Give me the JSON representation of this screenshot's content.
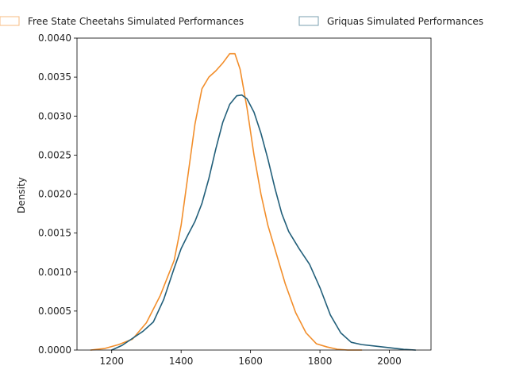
{
  "chart_data": {
    "type": "line",
    "title": "",
    "xlabel": "",
    "ylabel": "Density",
    "xlim": [
      1100,
      2120
    ],
    "ylim": [
      0,
      0.004
    ],
    "x_ticks": [
      "1200",
      "1400",
      "1600",
      "1800",
      "2000"
    ],
    "y_ticks": [
      "0.0000",
      "0.0005",
      "0.0010",
      "0.0015",
      "0.0020",
      "0.0025",
      "0.0030",
      "0.0035",
      "0.0040"
    ],
    "grid": false,
    "legend": "top",
    "series": [
      {
        "name": "Free State Cheetahs Simulated Performances",
        "color": "#f28e2b",
        "x": [
          1140,
          1180,
          1220,
          1260,
          1300,
          1340,
          1380,
          1400,
          1420,
          1440,
          1460,
          1480,
          1500,
          1520,
          1540,
          1555,
          1570,
          1590,
          1610,
          1630,
          1650,
          1670,
          1700,
          1730,
          1760,
          1790,
          1820,
          1850,
          1880,
          1920
        ],
        "y": [
          0.0,
          2e-05,
          7e-05,
          0.00014,
          0.00035,
          0.0007,
          0.00115,
          0.0016,
          0.00225,
          0.0029,
          0.00335,
          0.0035,
          0.00358,
          0.00368,
          0.0038,
          0.0038,
          0.0036,
          0.0031,
          0.0025,
          0.002,
          0.0016,
          0.0013,
          0.00085,
          0.00048,
          0.00022,
          8e-05,
          4e-05,
          1e-05,
          0.0,
          0.0
        ]
      },
      {
        "name": "Griquas Simulated Performances",
        "color": "#225f7a",
        "x": [
          1200,
          1230,
          1260,
          1290,
          1320,
          1350,
          1380,
          1400,
          1420,
          1440,
          1460,
          1480,
          1500,
          1520,
          1540,
          1560,
          1575,
          1590,
          1610,
          1630,
          1650,
          1670,
          1690,
          1710,
          1740,
          1770,
          1800,
          1830,
          1860,
          1890,
          1920,
          1960,
          2000,
          2040,
          2075
        ],
        "y": [
          0.0,
          6e-05,
          0.00015,
          0.00024,
          0.00036,
          0.00065,
          0.00105,
          0.0013,
          0.00148,
          0.00165,
          0.00188,
          0.0022,
          0.00258,
          0.00292,
          0.00315,
          0.00326,
          0.00327,
          0.00322,
          0.00305,
          0.00278,
          0.00245,
          0.00208,
          0.00175,
          0.00152,
          0.0013,
          0.0011,
          0.0008,
          0.00045,
          0.00022,
          0.0001,
          7e-05,
          5e-05,
          3e-05,
          1e-05,
          0.0
        ]
      }
    ]
  }
}
